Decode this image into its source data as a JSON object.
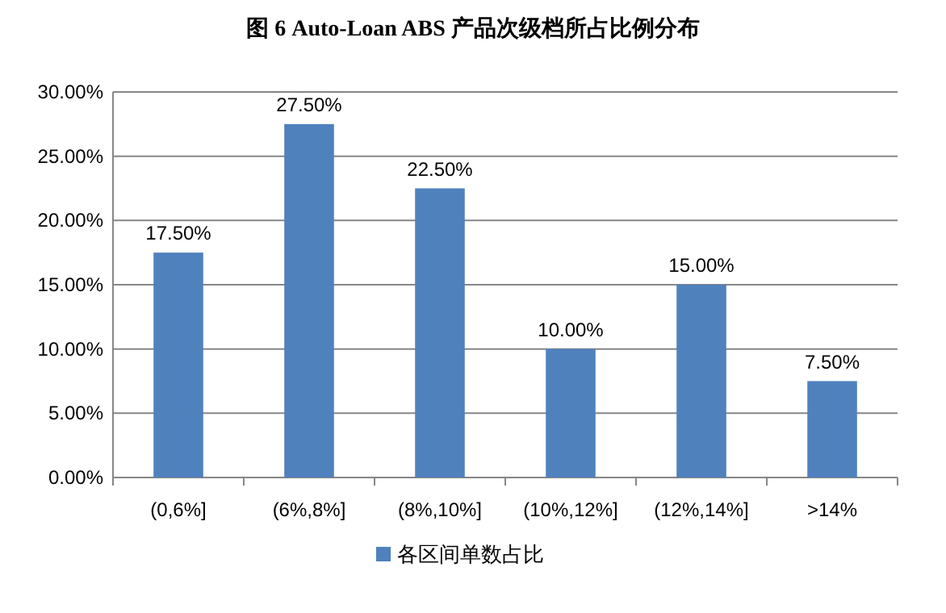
{
  "chart_data": {
    "type": "bar",
    "title": "图 6 Auto-Loan ABS 产品次级档所占比例分布",
    "categories": [
      "(0,6%]",
      "(6%,8%]",
      "(8%,10%]",
      "(10%,12%]",
      "(12%,14%]",
      ">14%"
    ],
    "series": [
      {
        "name": "各区间单数占比",
        "color": "#4f81bd",
        "values": [
          17.5,
          27.5,
          22.5,
          10,
          15,
          7.5
        ],
        "value_labels": [
          "17.50%",
          "27.50%",
          "22.50%",
          "10.00%",
          "15.00%",
          "7.50%"
        ]
      }
    ],
    "ylim": [
      0,
      30
    ],
    "yticks": [
      {
        "value": 0,
        "label": "0.00%"
      },
      {
        "value": 5,
        "label": "5.00%"
      },
      {
        "value": 10,
        "label": "10.00%"
      },
      {
        "value": 15,
        "label": "15.00%"
      },
      {
        "value": 20,
        "label": "20.00%"
      },
      {
        "value": 25,
        "label": "25.00%"
      },
      {
        "value": 30,
        "label": "30.00%"
      }
    ],
    "grid": "y",
    "legend": "bottom"
  }
}
